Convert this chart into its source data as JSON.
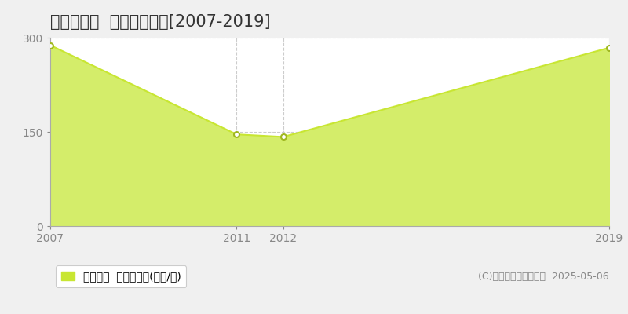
{
  "title": "江東区冬木  土地価格推移[2007-2019]",
  "years": [
    2007,
    2011,
    2012,
    2019
  ],
  "values": [
    288,
    146,
    142,
    284
  ],
  "line_color": "#c8e632",
  "fill_color": "#d4ed6a",
  "marker_color": "#ffffff",
  "marker_edge_color": "#a0b820",
  "ylim": [
    0,
    300
  ],
  "yticks": [
    0,
    150,
    300
  ],
  "xticks": [
    2007,
    2011,
    2012,
    2019
  ],
  "grid_color": "#cccccc",
  "bg_color": "#f0f0f0",
  "plot_bg_color": "#ffffff",
  "legend_label": "土地価格  平均坪単価(万円/坪)",
  "copyright_text": "(C)土地価格ドットコム  2025-05-06",
  "title_fontsize": 15,
  "tick_fontsize": 10,
  "legend_fontsize": 10,
  "copyright_fontsize": 9
}
